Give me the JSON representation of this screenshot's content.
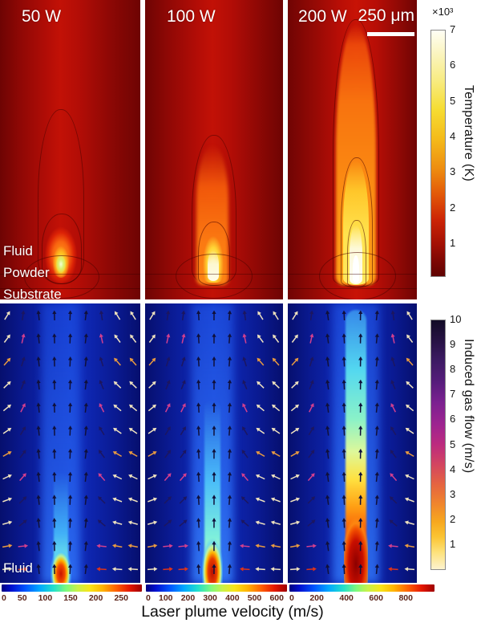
{
  "figure": {
    "temperature_row": {
      "panels": [
        {
          "power_label": "50 W"
        },
        {
          "power_label": "100 W"
        },
        {
          "power_label": "200 W"
        }
      ],
      "scale_bar_label": "250 μm",
      "region_labels": [
        "Fluid",
        "Powder",
        "Substrate"
      ],
      "colorbar": {
        "multiplier": "×10³",
        "ticks": [
          "7",
          "6",
          "5",
          "4",
          "3",
          "2",
          "1"
        ],
        "title": "Temperature (K)"
      }
    },
    "gas_flow_row": {
      "region_label": "Fluid",
      "colorbar": {
        "ticks": [
          "10",
          "9",
          "8",
          "7",
          "6",
          "5",
          "4",
          "3",
          "2",
          "1"
        ],
        "title": "Induced gas flow (m/s)"
      },
      "velocity_colorbars": [
        {
          "ticks": [
            "0",
            "50",
            "100",
            "150",
            "200",
            "250"
          ]
        },
        {
          "ticks": [
            "0",
            "100",
            "200",
            "300",
            "400",
            "500",
            "600"
          ]
        },
        {
          "ticks": [
            "0",
            "200",
            "400",
            "600",
            "800"
          ]
        }
      ],
      "xlabel": "Laser plume velocity (m/s)"
    }
  },
  "quiver": {
    "colors": {
      "center": "#10103a",
      "center2": "#1c1660",
      "magenta": "#d23f8e",
      "side": "#efe2be",
      "accent": "#e89a40",
      "red": "#e03418"
    }
  },
  "chart_data": [
    {
      "type": "heatmap",
      "title": "Temperature field",
      "panels": [
        "50 W",
        "100 W",
        "200 W"
      ],
      "colormap": "dark red → red → orange → yellow → white (thermal)",
      "colorbar": {
        "label": "Temperature (K)",
        "scale_factor": 1000,
        "ticks": [
          1,
          2,
          3,
          4,
          5,
          6,
          7
        ],
        "range": [
          300,
          7000
        ]
      },
      "regions": [
        "Fluid",
        "Powder",
        "Substrate"
      ],
      "scale_bar": "250 μm",
      "legend_position": "right",
      "trend": "plume height and peak temperature increase with laser power"
    },
    {
      "type": "heatmap",
      "title": "Induced gas flow with velocity vector field",
      "panels": [
        "50 W",
        "100 W",
        "200 W"
      ],
      "colormap_field": "dark blue background, cyan-yellow-red plume core (jet)",
      "colorbar": {
        "label": "Induced gas flow (m/s)",
        "ticks": [
          1,
          2,
          3,
          4,
          5,
          6,
          7,
          8,
          9,
          10
        ],
        "range": [
          0,
          10
        ]
      },
      "region": "Fluid",
      "xlabel": "Laser plume velocity (m/s)",
      "x_colorbars": [
        {
          "panel": "50 W",
          "ticks": [
            0,
            50,
            100,
            150,
            200,
            250
          ],
          "range": [
            0,
            290
          ]
        },
        {
          "panel": "100 W",
          "ticks": [
            0,
            100,
            200,
            300,
            400,
            500,
            600
          ],
          "range": [
            0,
            620
          ]
        },
        {
          "panel": "200 W",
          "ticks": [
            0,
            200,
            400,
            600,
            800
          ],
          "range": [
            0,
            1000
          ]
        }
      ],
      "trend": "laser plume velocity at the melt pool increases with laser power"
    }
  ]
}
